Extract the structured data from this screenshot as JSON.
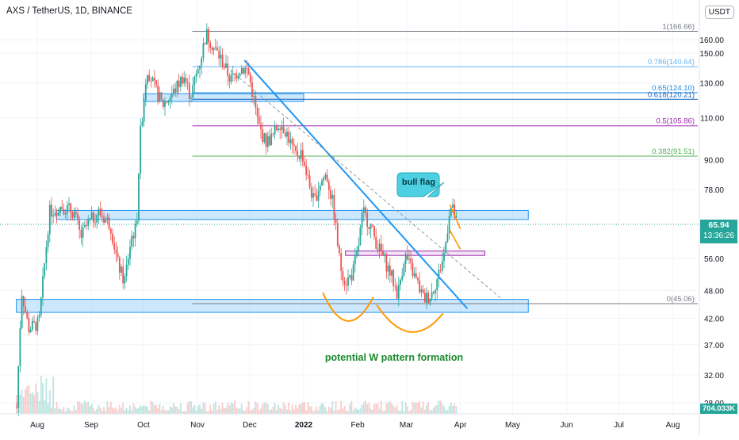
{
  "header": {
    "title": "AXS / TetherUS, 1D, BINANCE",
    "currency": "USDT"
  },
  "colors": {
    "up": "#26a69a",
    "down": "#ef5350",
    "zone_fill": "#bbdefb",
    "zone_border": "#2196f3",
    "fib_1": "#787b86",
    "fib_786": "#64b5f6",
    "fib_65": "#1e88e5",
    "fib_618": "#1565c0",
    "fib_5": "#9c27b0",
    "fib_382": "#4caf50",
    "fib_0": "#787b86",
    "trendline": "#2196f3",
    "annotation_orange": "#ff9800",
    "purple_zone": "#9c27b0",
    "callout_fill": "#4dd0e1",
    "green_text": "#1b8a2e"
  },
  "annotations": {
    "bull_flag": "bull flag",
    "w_pattern": "potential W pattern formation"
  },
  "current_price": {
    "value": "65.94",
    "countdown": "13:36:26",
    "volume": "704.033K"
  },
  "chart_data": {
    "type": "candlestick",
    "symbol": "AXS / TetherUS",
    "interval": "1D",
    "exchange": "BINANCE",
    "y_scale": "log",
    "ylim": [
      26.5,
      180
    ],
    "y_ticks": [
      "160.00",
      "150.00",
      "130.00",
      "110.00",
      "90.00",
      "78.00",
      "56.00",
      "48.00",
      "42.00",
      "37.00",
      "32.00",
      "28.00"
    ],
    "x_ticks": [
      "Aug",
      "Sep",
      "Oct",
      "Nov",
      "Dec",
      "2022",
      "Feb",
      "Mar",
      "Apr",
      "May",
      "Jun",
      "Jul",
      "Aug"
    ],
    "price_path": [
      [
        "2021-07-20",
        26.5
      ],
      [
        "2021-07-23",
        48
      ],
      [
        "2021-07-27",
        40
      ],
      [
        "2021-08-02",
        41
      ],
      [
        "2021-08-08",
        70
      ],
      [
        "2021-08-15",
        72
      ],
      [
        "2021-08-22",
        70
      ],
      [
        "2021-08-26",
        62
      ],
      [
        "2021-08-30",
        66
      ],
      [
        "2021-09-05",
        70
      ],
      [
        "2021-09-12",
        66
      ],
      [
        "2021-09-16",
        55
      ],
      [
        "2021-09-20",
        50
      ],
      [
        "2021-09-24",
        62
      ],
      [
        "2021-09-27",
        65
      ],
      [
        "2021-09-29",
        100
      ],
      [
        "2021-10-03",
        140
      ],
      [
        "2021-10-07",
        128
      ],
      [
        "2021-10-12",
        117
      ],
      [
        "2021-10-18",
        124
      ],
      [
        "2021-10-24",
        135
      ],
      [
        "2021-10-28",
        122
      ],
      [
        "2021-11-03",
        147
      ],
      [
        "2021-11-06",
        165
      ],
      [
        "2021-11-10",
        155
      ],
      [
        "2021-11-15",
        145
      ],
      [
        "2021-11-20",
        132
      ],
      [
        "2021-11-26",
        140
      ],
      [
        "2021-11-30",
        138
      ],
      [
        "2021-12-03",
        122
      ],
      [
        "2021-12-06",
        106
      ],
      [
        "2021-12-10",
        98
      ],
      [
        "2021-12-14",
        100
      ],
      [
        "2021-12-18",
        108
      ],
      [
        "2021-12-22",
        103
      ],
      [
        "2021-12-27",
        92
      ],
      [
        "2021-12-31",
        93
      ],
      [
        "2022-01-03",
        83
      ],
      [
        "2022-01-07",
        73
      ],
      [
        "2022-01-10",
        80
      ],
      [
        "2022-01-14",
        84
      ],
      [
        "2022-01-18",
        72
      ],
      [
        "2022-01-22",
        54
      ],
      [
        "2022-01-25",
        50
      ],
      [
        "2022-01-29",
        52
      ],
      [
        "2022-02-01",
        58
      ],
      [
        "2022-02-04",
        70
      ],
      [
        "2022-02-08",
        66
      ],
      [
        "2022-02-12",
        60
      ],
      [
        "2022-02-16",
        56
      ],
      [
        "2022-02-20",
        52
      ],
      [
        "2022-02-24",
        47
      ],
      [
        "2022-02-28",
        57
      ],
      [
        "2022-03-03",
        54
      ],
      [
        "2022-03-07",
        50
      ],
      [
        "2022-03-11",
        46
      ],
      [
        "2022-03-15",
        47
      ],
      [
        "2022-03-19",
        51
      ],
      [
        "2022-03-23",
        58
      ],
      [
        "2022-03-26",
        72
      ],
      [
        "2022-03-28",
        70
      ],
      [
        "2022-03-30",
        65.94
      ]
    ],
    "fib_levels": [
      {
        "label": "1(166.66)",
        "value": 166.66
      },
      {
        "label": "0.786(140.64)",
        "value": 140.64
      },
      {
        "label": "0.65(124.10)",
        "value": 124.1
      },
      {
        "label": "0.618(120.21)",
        "value": 120.21
      },
      {
        "label": "0.5(105.86)",
        "value": 105.86
      },
      {
        "label": "0.382(91.51)",
        "value": 91.51
      },
      {
        "label": "0(45.06)",
        "value": 45.06
      }
    ],
    "zones": [
      {
        "low": 119,
        "high": 123.5,
        "from": "2021-10-01",
        "to": "2022-01-01"
      },
      {
        "low": 67.5,
        "high": 70.5,
        "from": "2021-08-12",
        "to": "2022-05-10"
      },
      {
        "low": 43.2,
        "high": 46.0,
        "from": "2021-07-20",
        "to": "2022-05-10"
      },
      {
        "low": 56.8,
        "high": 58.0,
        "from": "2022-01-25",
        "to": "2022-04-15",
        "style": "purple"
      }
    ],
    "trendline": {
      "from": [
        "2021-11-28",
        145
      ],
      "to": [
        "2022-04-05",
        44
      ]
    },
    "dashed_trendline": {
      "from": [
        "2021-11-20",
        138
      ],
      "to": [
        "2022-04-25",
        46
      ]
    },
    "bull_flag_lines": [
      {
        "from": [
          "2022-03-26",
          72.5
        ],
        "to": [
          "2022-04-01",
          64.5
        ]
      },
      {
        "from": [
          "2022-03-26",
          64.0
        ],
        "to": [
          "2022-04-01",
          58.5
        ]
      }
    ],
    "w_curves": [
      {
        "from": [
          "2022-01-12",
          47.5
        ],
        "bottom": [
          "2022-01-26",
          41.4
        ],
        "to": [
          "2022-02-10",
          46.5
        ]
      },
      {
        "from": [
          "2022-02-12",
          44.8
        ],
        "bottom": [
          "2022-03-03",
          39.5
        ],
        "to": [
          "2022-03-22",
          43.0
        ]
      }
    ]
  }
}
